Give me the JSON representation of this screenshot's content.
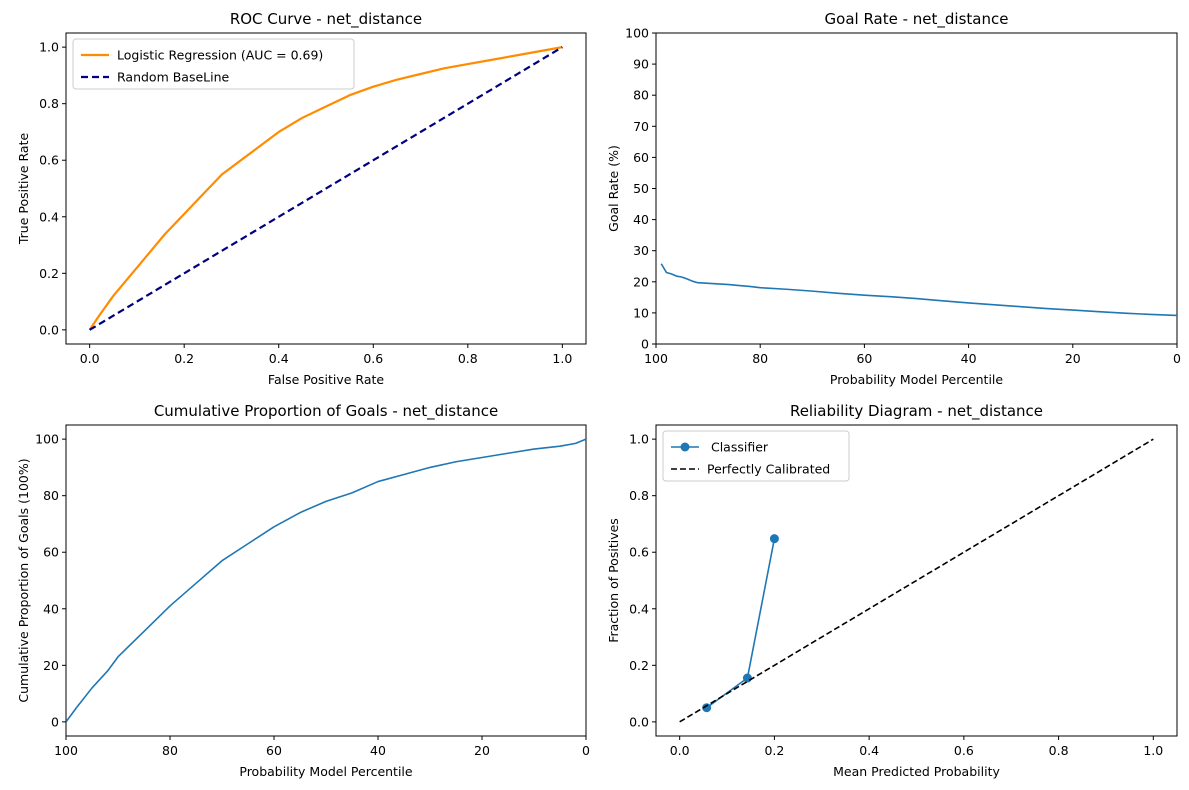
{
  "chart_data": [
    {
      "id": "roc",
      "type": "line",
      "title": "ROC Curve - net_distance",
      "xlabel": "False Positive Rate",
      "ylabel": "True Positive Rate",
      "xlim": [
        -0.05,
        1.05
      ],
      "ylim": [
        -0.05,
        1.05
      ],
      "xticks": [
        0.0,
        0.2,
        0.4,
        0.6,
        0.8,
        1.0
      ],
      "xtick_labels": [
        "0.0",
        "0.2",
        "0.4",
        "0.6",
        "0.8",
        "1.0"
      ],
      "yticks": [
        0.0,
        0.2,
        0.4,
        0.6,
        0.8,
        1.0
      ],
      "ytick_labels": [
        "0.0",
        "0.2",
        "0.4",
        "0.6",
        "0.8",
        "1.0"
      ],
      "legend_position": "top-left",
      "series": [
        {
          "name": "Logistic Regression (AUC = 0.69)",
          "color": "#ff8c00",
          "style": "solid",
          "x": [
            0.0,
            0.02,
            0.05,
            0.08,
            0.1,
            0.13,
            0.16,
            0.2,
            0.24,
            0.28,
            0.32,
            0.36,
            0.4,
            0.45,
            0.5,
            0.55,
            0.6,
            0.65,
            0.7,
            0.75,
            0.8,
            0.85,
            0.9,
            0.95,
            1.0
          ],
          "y": [
            0.0,
            0.05,
            0.12,
            0.18,
            0.22,
            0.28,
            0.34,
            0.41,
            0.48,
            0.55,
            0.6,
            0.65,
            0.7,
            0.75,
            0.79,
            0.83,
            0.86,
            0.885,
            0.905,
            0.925,
            0.94,
            0.955,
            0.97,
            0.985,
            1.0
          ]
        },
        {
          "name": "Random BaseLine",
          "color": "#000080",
          "style": "dashed",
          "x": [
            0.0,
            1.0
          ],
          "y": [
            0.0,
            1.0
          ]
        }
      ]
    },
    {
      "id": "goalrate",
      "type": "line",
      "title": "Goal Rate  - net_distance",
      "xlabel": "Probability Model Percentile",
      "ylabel": "Goal Rate (%)",
      "xlim": [
        100,
        0
      ],
      "ylim": [
        0,
        100
      ],
      "xticks": [
        100,
        80,
        60,
        40,
        20,
        0
      ],
      "xtick_labels": [
        "100",
        "80",
        "60",
        "40",
        "20",
        "0"
      ],
      "yticks": [
        0,
        10,
        20,
        30,
        40,
        50,
        60,
        70,
        80,
        90,
        100
      ],
      "ytick_labels": [
        "0",
        "10",
        "20",
        "30",
        "40",
        "50",
        "60",
        "70",
        "80",
        "90",
        "100"
      ],
      "series": [
        {
          "name": "Goal Rate",
          "color": "#1f77b4",
          "style": "solid",
          "x": [
            99,
            98,
            97,
            96,
            95,
            94,
            93,
            92,
            90,
            88,
            86,
            84,
            82,
            80,
            75,
            70,
            65,
            60,
            55,
            50,
            45,
            40,
            35,
            30,
            25,
            20,
            15,
            10,
            5,
            0
          ],
          "y": [
            25.8,
            23.0,
            22.5,
            21.8,
            21.5,
            20.9,
            20.2,
            19.7,
            19.5,
            19.3,
            19.1,
            18.8,
            18.5,
            18.1,
            17.6,
            17.0,
            16.3,
            15.7,
            15.2,
            14.6,
            13.9,
            13.2,
            12.6,
            12.0,
            11.4,
            10.9,
            10.4,
            9.9,
            9.5,
            9.2
          ]
        }
      ]
    },
    {
      "id": "cumulative",
      "type": "line",
      "title": "Cumulative Proportion of Goals  - net_distance",
      "xlabel": "Probability Model Percentile",
      "ylabel": "Cumulative Proportion of Goals (100%)",
      "xlim": [
        100,
        0
      ],
      "ylim": [
        -5,
        105
      ],
      "xticks": [
        100,
        80,
        60,
        40,
        20,
        0
      ],
      "xtick_labels": [
        "100",
        "80",
        "60",
        "40",
        "20",
        "0"
      ],
      "yticks": [
        0,
        20,
        40,
        60,
        80,
        100
      ],
      "ytick_labels": [
        "0",
        "20",
        "40",
        "60",
        "80",
        "100"
      ],
      "series": [
        {
          "name": "Cumulative",
          "color": "#1f77b4",
          "style": "solid",
          "x": [
            100,
            98,
            95,
            92,
            90,
            85,
            80,
            75,
            70,
            65,
            60,
            55,
            50,
            45,
            40,
            35,
            30,
            25,
            20,
            15,
            10,
            5,
            2,
            0
          ],
          "y": [
            0,
            5,
            12,
            18,
            23,
            32,
            41,
            49,
            57,
            63,
            69,
            74,
            78,
            81,
            85,
            87.5,
            90,
            92,
            93.5,
            95,
            96.5,
            97.5,
            98.5,
            100
          ]
        }
      ]
    },
    {
      "id": "reliability",
      "type": "line",
      "title": "Reliability Diagram - net_distance",
      "xlabel": "Mean Predicted Probability",
      "ylabel": "Fraction of Positives",
      "xlim": [
        -0.05,
        1.05
      ],
      "ylim": [
        -0.05,
        1.05
      ],
      "xticks": [
        0.0,
        0.2,
        0.4,
        0.6,
        0.8,
        1.0
      ],
      "xtick_labels": [
        "0.0",
        "0.2",
        "0.4",
        "0.6",
        "0.8",
        "1.0"
      ],
      "yticks": [
        0.0,
        0.2,
        0.4,
        0.6,
        0.8,
        1.0
      ],
      "ytick_labels": [
        "0.0",
        "0.2",
        "0.4",
        "0.6",
        "0.8",
        "1.0"
      ],
      "legend_position": "top-left",
      "series": [
        {
          "name": " Classifier",
          "color": "#1f77b4",
          "style": "solid",
          "markers": true,
          "x": [
            0.057,
            0.143,
            0.2
          ],
          "y": [
            0.05,
            0.155,
            0.648
          ]
        },
        {
          "name": "Perfectly Calibrated",
          "color": "#000000",
          "style": "dashed",
          "x": [
            0.0,
            1.0
          ],
          "y": [
            0.0,
            1.0
          ]
        }
      ]
    }
  ]
}
